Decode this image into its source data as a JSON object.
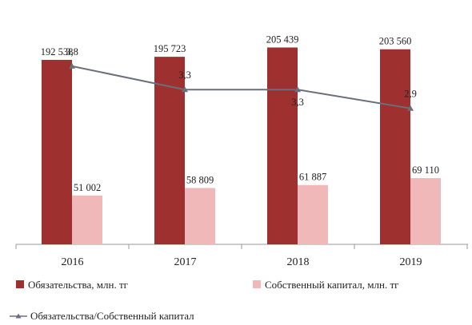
{
  "chart_data": {
    "type": "bar",
    "categories": [
      "2016",
      "2017",
      "2018",
      "2019"
    ],
    "series": [
      {
        "name": "Обязательства, млн. тг",
        "type": "bar",
        "values": [
          192538,
          195723,
          205439,
          203560
        ],
        "labels": [
          "192 538",
          "195 723",
          "205 439",
          "203 560"
        ],
        "color": "#9e3030"
      },
      {
        "name": "Собственный капитал, млн. тг",
        "type": "bar",
        "values": [
          51002,
          58809,
          61887,
          69110
        ],
        "labels": [
          "51 002",
          "58 809",
          "61 887",
          "69 110"
        ],
        "color": "#f0b8b8"
      },
      {
        "name": "Обязательства/Собственный капитал",
        "type": "line",
        "values": [
          3.8,
          3.3,
          3.3,
          2.9
        ],
        "labels": [
          "3,8",
          "3,3",
          "3,3",
          "2,9"
        ],
        "color": "#6b6f7a"
      }
    ],
    "ylim": [
      0,
      230000
    ],
    "line_ylim": [
      0,
      4.7
    ],
    "grid": false,
    "legend": "bottom"
  }
}
